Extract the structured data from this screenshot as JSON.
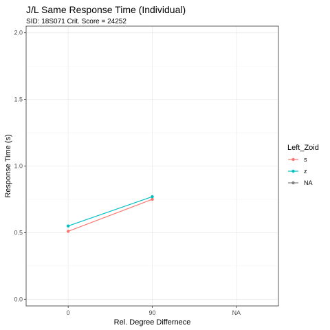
{
  "chart_data": {
    "type": "line",
    "title": "J/L Same Response Time (Individual)",
    "subtitle": "SID:  18S071 Crit. Score =  24252",
    "xlabel": "Rel. Degree Differnece",
    "ylabel": "Response Time (s)",
    "categories": [
      "0",
      "90",
      "NA"
    ],
    "ylim": [
      -0.05,
      2.05
    ],
    "yticks": [
      0.0,
      0.5,
      1.0,
      1.5,
      2.0
    ],
    "ytick_labels": [
      "0.0",
      "0.5",
      "1.0",
      "1.5",
      "2.0"
    ],
    "grid": true,
    "legend": {
      "title": "Left_Zoid",
      "position": "right"
    },
    "series": [
      {
        "name": "s",
        "color": "#F8766D",
        "values": [
          0.51,
          0.75,
          null
        ]
      },
      {
        "name": "z",
        "color": "#00BFC4",
        "values": [
          0.55,
          0.77,
          null
        ]
      },
      {
        "name": "NA",
        "color": "#7F7F7F",
        "values": [
          null,
          null,
          null
        ]
      }
    ]
  }
}
